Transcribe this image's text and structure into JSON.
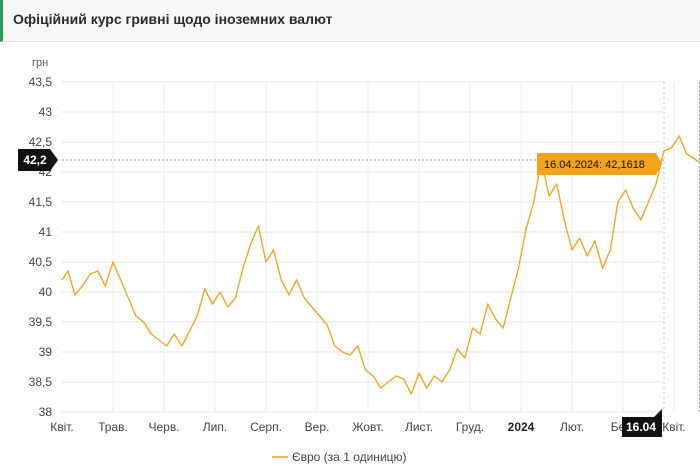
{
  "header": {
    "title": "Офіційний курс гривні щодо іноземних валют"
  },
  "chart_data": {
    "type": "line",
    "ylabel": "грн",
    "ylim": [
      38,
      43.5
    ],
    "y_ticks": [
      "38",
      "38,5",
      "39",
      "39,5",
      "40",
      "40,5",
      "41",
      "41,5",
      "42",
      "42,5",
      "43",
      "43,5"
    ],
    "x_ticks": [
      {
        "label": "Квіт.",
        "bold": false
      },
      {
        "label": "Трав.",
        "bold": false
      },
      {
        "label": "Черв.",
        "bold": false
      },
      {
        "label": "Лип.",
        "bold": false
      },
      {
        "label": "Серп.",
        "bold": false
      },
      {
        "label": "Вер.",
        "bold": false
      },
      {
        "label": "Жовт.",
        "bold": false
      },
      {
        "label": "Лист.",
        "bold": false
      },
      {
        "label": "Груд.",
        "bold": false
      },
      {
        "label": "2024",
        "bold": true
      },
      {
        "label": "Лют.",
        "bold": false
      },
      {
        "label": "Бер.",
        "bold": false
      },
      {
        "label": "Квіт.",
        "bold": false
      }
    ],
    "x_range": [
      0,
      12.5
    ],
    "grid": true,
    "legend_position": "bottom",
    "series": [
      {
        "name": "Євро (за 1 одиницю)",
        "color": "#f5a623",
        "x": [
          0,
          0.12,
          0.25,
          0.4,
          0.55,
          0.7,
          0.85,
          1.0,
          1.15,
          1.3,
          1.45,
          1.6,
          1.75,
          1.9,
          2.05,
          2.2,
          2.35,
          2.5,
          2.65,
          2.8,
          2.95,
          3.1,
          3.25,
          3.4,
          3.55,
          3.7,
          3.85,
          4.0,
          4.15,
          4.3,
          4.45,
          4.6,
          4.75,
          4.9,
          5.05,
          5.2,
          5.35,
          5.5,
          5.65,
          5.8,
          5.95,
          6.1,
          6.25,
          6.4,
          6.55,
          6.7,
          6.85,
          7.0,
          7.15,
          7.3,
          7.45,
          7.6,
          7.75,
          7.9,
          8.05,
          8.2,
          8.35,
          8.5,
          8.65,
          8.8,
          8.95,
          9.1,
          9.25,
          9.4,
          9.55,
          9.7,
          9.85,
          10.0,
          10.15,
          10.3,
          10.45,
          10.6,
          10.75,
          10.9,
          11.05,
          11.2,
          11.35,
          11.5,
          11.65,
          11.8,
          11.95,
          12.1,
          12.25,
          12.35,
          12.5
        ],
        "values": [
          40.2,
          40.35,
          39.95,
          40.1,
          40.3,
          40.35,
          40.1,
          40.5,
          40.2,
          39.9,
          39.6,
          39.5,
          39.3,
          39.2,
          39.1,
          39.3,
          39.1,
          39.35,
          39.6,
          40.05,
          39.8,
          40.0,
          39.75,
          39.9,
          40.4,
          40.8,
          41.1,
          40.5,
          40.7,
          40.2,
          39.95,
          40.2,
          39.9,
          39.75,
          39.6,
          39.45,
          39.1,
          39.0,
          38.95,
          39.1,
          38.7,
          38.6,
          38.4,
          38.5,
          38.6,
          38.55,
          38.3,
          38.65,
          38.4,
          38.6,
          38.5,
          38.7,
          39.05,
          38.9,
          39.4,
          39.3,
          39.8,
          39.55,
          39.4,
          39.9,
          40.4,
          41.05,
          41.5,
          42.2,
          41.6,
          41.8,
          41.2,
          40.7,
          40.9,
          40.6,
          40.85,
          40.4,
          40.7,
          41.5,
          41.7,
          41.4,
          41.2,
          41.5,
          41.8,
          42.35,
          42.4,
          42.6,
          42.3,
          42.25,
          42.16
        ]
      }
    ],
    "crosshair": {
      "y_value": 42.2,
      "y_label": "42,2",
      "x_label": "16.04",
      "tooltip": "16.04.2024: 42,1618"
    }
  }
}
